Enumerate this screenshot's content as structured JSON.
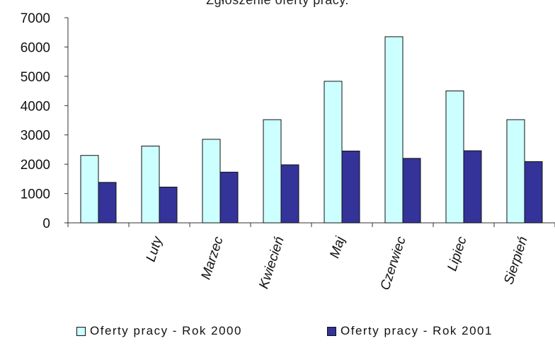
{
  "chart_data": {
    "type": "bar",
    "title": "Zgłoszenie oferty pracy.",
    "categories": [
      "",
      "Luty",
      "Marzec",
      "Kwiecień",
      "Maj",
      "Czerwiec",
      "Lipiec",
      "Sierpień"
    ],
    "series": [
      {
        "name": "Oferty pracy - Rok 2000",
        "values": [
          2300,
          2620,
          2850,
          3520,
          4830,
          6350,
          4500,
          3520
        ],
        "color": "#ccffff"
      },
      {
        "name": "Oferty pracy - Rok 2001",
        "values": [
          1380,
          1220,
          1730,
          1980,
          2450,
          2200,
          2460,
          2090
        ],
        "color": "#333399"
      }
    ],
    "ylim": [
      0,
      7000
    ],
    "yticks": [
      "0",
      "1000",
      "2000",
      "3000",
      "4000",
      "5000",
      "6000",
      "7000"
    ],
    "grid": false,
    "legend_position": "bottom"
  }
}
